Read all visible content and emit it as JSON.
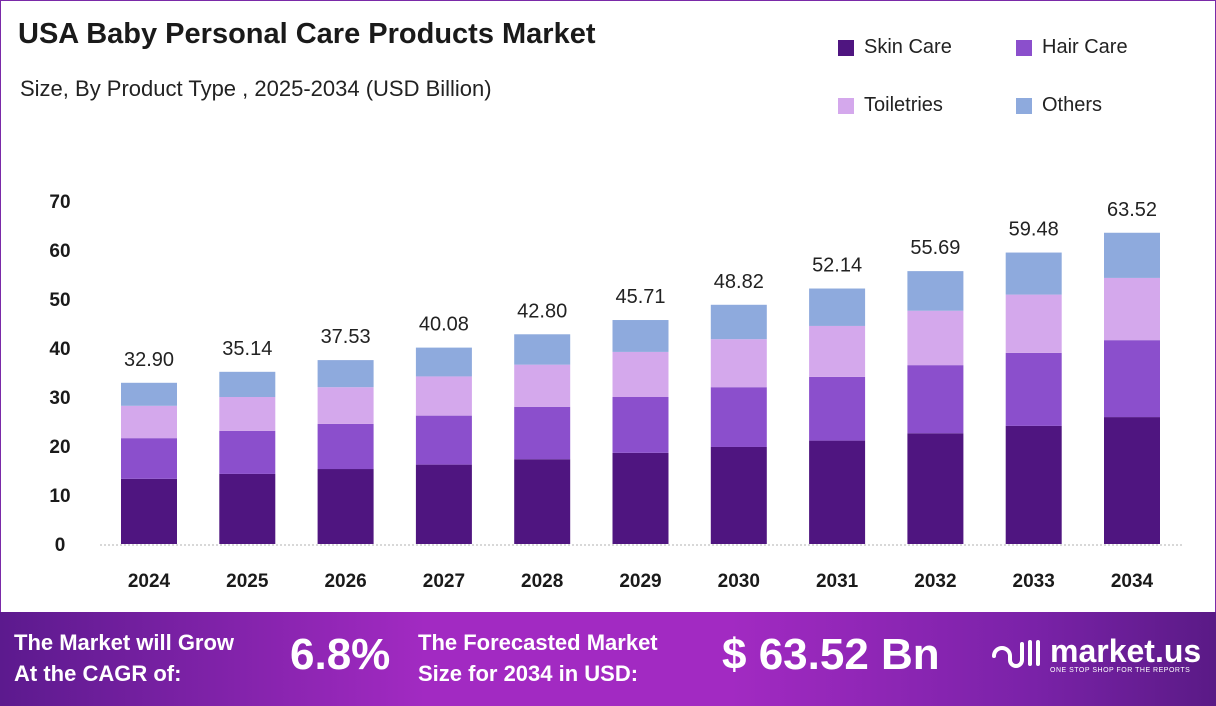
{
  "chart_data": {
    "type": "bar",
    "stacked": true,
    "title": "USA Baby Personal Care Products Market",
    "subtitle": "Size, By Product Type , 2025-2034 (USD Billion)",
    "categories": [
      "2024",
      "2025",
      "2026",
      "2027",
      "2028",
      "2029",
      "2030",
      "2031",
      "2032",
      "2033",
      "2034"
    ],
    "totals": [
      "32.90",
      "35.14",
      "37.53",
      "40.08",
      "42.80",
      "45.71",
      "48.82",
      "52.14",
      "55.69",
      "59.48",
      "63.52"
    ],
    "series": [
      {
        "name": "Skin Care",
        "color": "#4f1580",
        "values": [
          13.3,
          14.3,
          15.3,
          16.2,
          17.3,
          18.6,
          19.8,
          21.1,
          22.6,
          24.1,
          25.9
        ]
      },
      {
        "name": "Hair Care",
        "color": "#8b4fcc",
        "values": [
          8.3,
          8.8,
          9.2,
          10.0,
          10.7,
          11.4,
          12.2,
          13.0,
          13.9,
          14.9,
          15.7
        ]
      },
      {
        "name": "Toiletries",
        "color": "#d4a8ec",
        "values": [
          6.6,
          6.9,
          7.5,
          8.0,
          8.6,
          9.2,
          9.8,
          10.4,
          11.1,
          11.9,
          12.7
        ]
      },
      {
        "name": "Others",
        "color": "#8eaadd",
        "values": [
          4.7,
          5.14,
          5.53,
          5.88,
          6.2,
          6.51,
          7.02,
          7.64,
          8.09,
          8.58,
          9.22
        ]
      }
    ],
    "yticks": [
      "0",
      "10",
      "20",
      "30",
      "40",
      "50",
      "60",
      "70"
    ],
    "ylim": [
      0,
      70
    ],
    "grid": false,
    "legend_position": "top-right"
  },
  "footer": {
    "cagr_line1": "The Market will Grow",
    "cagr_line2": "At the CAGR of:",
    "cagr_value": "6.8%",
    "forecast_line1": "The Forecasted Market",
    "forecast_line2": "Size for 2034 in USD:",
    "forecast_value": "$ 63.52 Bn",
    "logo_name": "market.us",
    "logo_tagline": "ONE STOP SHOP FOR THE REPORTS"
  }
}
